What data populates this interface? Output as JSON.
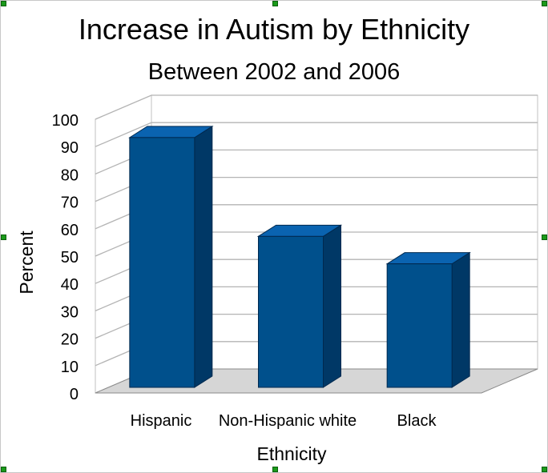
{
  "chart_data": {
    "type": "bar",
    "title": "Increase in Autism by Ethnicity",
    "subtitle": "Between 2002 and 2006",
    "xlabel": "Ethnicity",
    "ylabel": "Percent",
    "categories": [
      "Hispanic",
      "Non-Hispanic white",
      "Black"
    ],
    "values": [
      91,
      55,
      45
    ],
    "ylim": [
      0,
      100
    ],
    "yticks": [
      "0",
      "10",
      "20",
      "30",
      "40",
      "50",
      "60",
      "70",
      "80",
      "90",
      "100"
    ],
    "grid": true,
    "three_d": true,
    "legend": "none"
  },
  "colors": {
    "bar_front": "#00508c",
    "bar_top": "#0a63b0",
    "bar_side": "#003866",
    "bar_outline": "#00294f",
    "floor": "#d6d6d6",
    "gridline": "#b4b4b4"
  }
}
